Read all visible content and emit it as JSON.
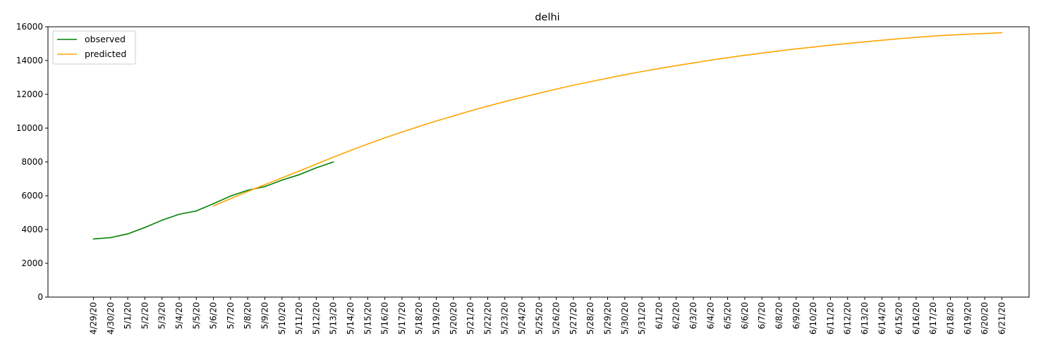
{
  "chart_data": {
    "type": "line",
    "title": "delhi",
    "xlabel": "",
    "ylabel": "",
    "ylim": [
      0,
      16000
    ],
    "yticks": [
      0,
      2000,
      4000,
      6000,
      8000,
      10000,
      12000,
      14000,
      16000
    ],
    "grid": false,
    "legend": "top-left",
    "categories": [
      "4/29/20",
      "4/30/20",
      "5/1/20",
      "5/2/20",
      "5/3/20",
      "5/4/20",
      "5/5/20",
      "5/6/20",
      "5/7/20",
      "5/8/20",
      "5/9/20",
      "5/10/20",
      "5/11/20",
      "5/12/20",
      "5/13/20",
      "5/14/20",
      "5/15/20",
      "5/16/20",
      "5/17/20",
      "5/18/20",
      "5/19/20",
      "5/20/20",
      "5/21/20",
      "5/22/20",
      "5/23/20",
      "5/24/20",
      "5/25/20",
      "5/26/20",
      "5/27/20",
      "5/28/20",
      "5/29/20",
      "5/30/20",
      "5/31/20",
      "6/1/20",
      "6/2/20",
      "6/3/20",
      "6/4/20",
      "6/5/20",
      "6/6/20",
      "6/7/20",
      "6/8/20",
      "6/9/20",
      "6/10/20",
      "6/11/20",
      "6/12/20",
      "6/13/20",
      "6/14/20",
      "6/15/20",
      "6/16/20",
      "6/17/20",
      "6/18/20",
      "6/19/20",
      "6/20/20",
      "6/21/20"
    ],
    "series": [
      {
        "name": "observed",
        "color": "#008000",
        "x": [
          "4/29/20",
          "4/30/20",
          "5/1/20",
          "5/2/20",
          "5/3/20",
          "5/4/20",
          "5/5/20",
          "5/6/20",
          "5/7/20",
          "5/8/20",
          "5/9/20",
          "5/10/20",
          "5/11/20",
          "5/12/20",
          "5/13/20"
        ],
        "values": [
          3440,
          3520,
          3740,
          4120,
          4550,
          4900,
          5100,
          5530,
          5980,
          6320,
          6540,
          6920,
          7240,
          7650,
          8000
        ]
      },
      {
        "name": "predicted",
        "color": "#ffa500",
        "x": [
          "5/6/20",
          "5/7/20",
          "5/8/20",
          "5/9/20",
          "5/10/20",
          "5/11/20",
          "5/12/20",
          "5/13/20",
          "5/14/20",
          "5/15/20",
          "5/16/20",
          "5/17/20",
          "5/18/20",
          "5/19/20",
          "5/20/20",
          "5/21/20",
          "5/22/20",
          "5/23/20",
          "5/24/20",
          "5/25/20",
          "5/26/20",
          "5/27/20",
          "5/28/20",
          "5/29/20",
          "5/30/20",
          "5/31/20",
          "6/1/20",
          "6/2/20",
          "6/3/20",
          "6/4/20",
          "6/5/20",
          "6/6/20",
          "6/7/20",
          "6/8/20",
          "6/9/20",
          "6/10/20",
          "6/11/20",
          "6/12/20",
          "6/13/20",
          "6/14/20",
          "6/15/20",
          "6/16/20",
          "6/17/20",
          "6/18/20",
          "6/19/20",
          "6/20/20",
          "6/21/20"
        ],
        "values": [
          5400,
          5820,
          6250,
          6650,
          7060,
          7460,
          7870,
          8280,
          8680,
          9060,
          9420,
          9770,
          10100,
          10420,
          10720,
          11020,
          11300,
          11570,
          11820,
          12070,
          12310,
          12540,
          12750,
          12960,
          13160,
          13350,
          13530,
          13700,
          13860,
          14020,
          14170,
          14310,
          14440,
          14570,
          14690,
          14800,
          14910,
          15010,
          15110,
          15200,
          15290,
          15370,
          15450,
          15510,
          15560,
          15600,
          15650
        ]
      }
    ]
  }
}
